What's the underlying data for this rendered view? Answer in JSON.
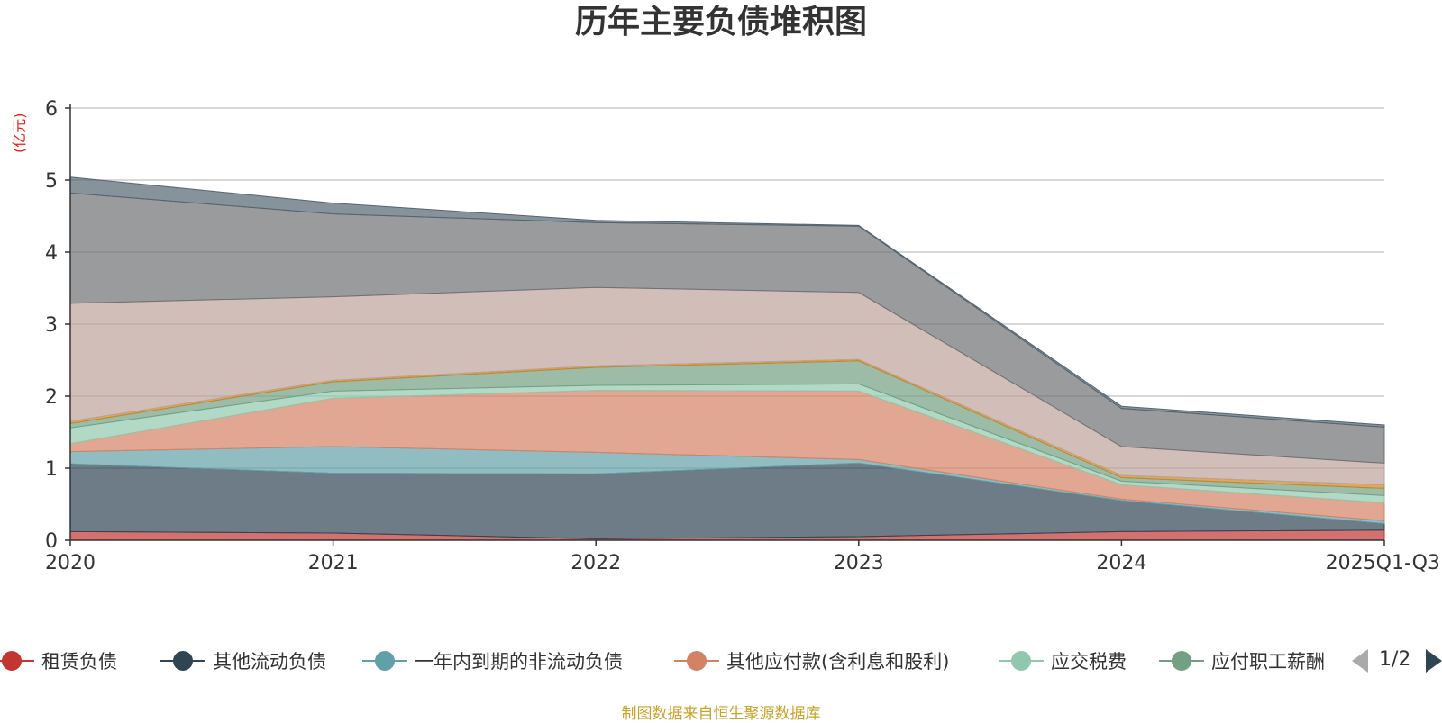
{
  "chart_data": {
    "type": "area",
    "stacked": true,
    "title": "历年主要负债堆积图",
    "y_unit": "(亿元)",
    "ylim": [
      0,
      6
    ],
    "yticks": [
      "0",
      "1",
      "2",
      "3",
      "4",
      "5",
      "6"
    ],
    "categories": [
      "2020",
      "2021",
      "2022",
      "2023",
      "2024",
      "2025Q1-Q3"
    ],
    "grid": true,
    "legend_position": "bottom",
    "series": [
      {
        "name": "租赁负债",
        "color": "#c23531",
        "values": [
          0.12,
          0.1,
          0.02,
          0.05,
          0.12,
          0.14
        ]
      },
      {
        "name": "其他流动负债",
        "color": "#2f4554",
        "values": [
          0.94,
          0.83,
          0.9,
          1.02,
          0.43,
          0.09
        ]
      },
      {
        "name": "一年内到期的非流动负债",
        "color": "#61a0a8",
        "values": [
          0.17,
          0.37,
          0.3,
          0.05,
          0.02,
          0.04
        ]
      },
      {
        "name": "其他应付款(含利息和股利)",
        "color": "#d48265",
        "values": [
          0.11,
          0.67,
          0.86,
          0.95,
          0.2,
          0.25
        ]
      },
      {
        "name": "应交税费",
        "color": "#91c7ae",
        "values": [
          0.22,
          0.1,
          0.07,
          0.1,
          0.05,
          0.1
        ]
      },
      {
        "name": "应付职工薪酬",
        "color": "#749f83",
        "values": [
          0.06,
          0.13,
          0.25,
          0.32,
          0.05,
          0.1
        ]
      },
      {
        "name": "",
        "color": "#ca8622",
        "values": [
          0.03,
          0.02,
          0.02,
          0.02,
          0.03,
          0.05
        ]
      },
      {
        "name": "",
        "color": "#bda29a",
        "values": [
          1.64,
          1.16,
          1.09,
          0.93,
          0.4,
          0.3
        ]
      },
      {
        "name": "",
        "color": "#6e7074",
        "values": [
          1.53,
          1.15,
          0.9,
          0.92,
          0.53,
          0.5
        ]
      },
      {
        "name": "",
        "color": "#546570",
        "values": [
          0.22,
          0.15,
          0.03,
          0.01,
          0.03,
          0.03
        ]
      }
    ]
  },
  "legend": {
    "items": [
      "租赁负债",
      "其他流动负债",
      "一年内到期的非流动负债",
      "其他应付款(含利息和股利)",
      "应交税费",
      "应付职工薪酬"
    ],
    "page": "1/2"
  },
  "source": "制图数据来自恒生聚源数据库"
}
